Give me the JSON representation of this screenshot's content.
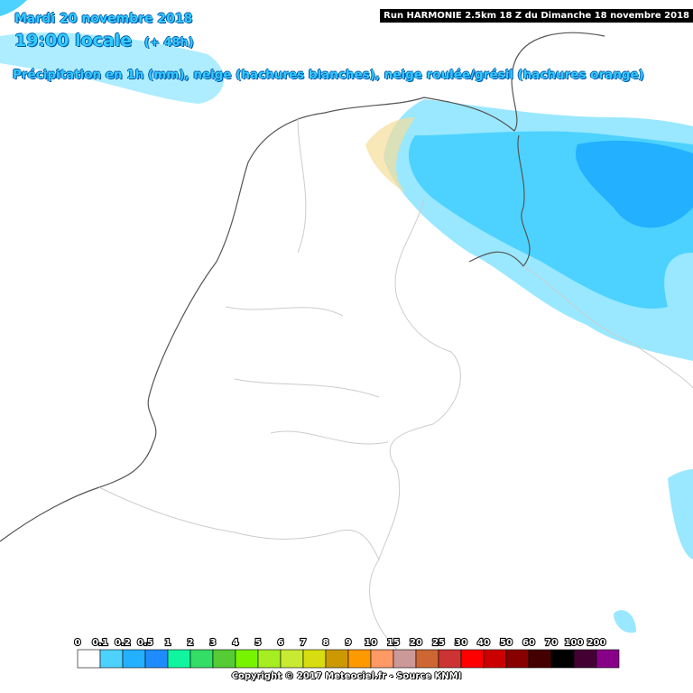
{
  "header": {
    "date": "Mardi 20 novembre 2018",
    "time": "19:00 locale",
    "offset": "(+ 48h)",
    "subtitle": "Précipitation en 1h (mm), neige (hachures blanches), neige roulée/grésil (hachures orange)",
    "run": "Run HARMONIE 2.5km 18 Z du Dimanche 18 novembre 2018"
  },
  "legend": {
    "items": [
      {
        "label": "0",
        "color": "#ffffff"
      },
      {
        "label": "0.1",
        "color": "#99e8ff"
      },
      {
        "label": "0.2",
        "color": "#4dd2ff"
      },
      {
        "label": "0.5",
        "color": "#22b0ff"
      },
      {
        "label": "1",
        "color": "#1e8cff"
      },
      {
        "label": "2",
        "color": "#10f5a0"
      },
      {
        "label": "3",
        "color": "#33dd66"
      },
      {
        "label": "4",
        "color": "#55cc33"
      },
      {
        "label": "5",
        "color": "#77f500"
      },
      {
        "label": "6",
        "color": "#a6ee22"
      },
      {
        "label": "7",
        "color": "#c8ea33"
      },
      {
        "label": "8",
        "color": "#d8dd10"
      },
      {
        "label": "9",
        "color": "#cc9900"
      },
      {
        "label": "10",
        "color": "#ff9900"
      },
      {
        "label": "15",
        "color": "#ff9966"
      },
      {
        "label": "20",
        "color": "#cc9999"
      },
      {
        "label": "25",
        "color": "#cc6633"
      },
      {
        "label": "30",
        "color": "#cc3333"
      },
      {
        "label": "40",
        "color": "#ff0000"
      },
      {
        "label": "50",
        "color": "#cc0000"
      },
      {
        "label": "60",
        "color": "#880000"
      },
      {
        "label": "70",
        "color": "#440000"
      },
      {
        "label": "100",
        "color": "#000000"
      },
      {
        "label": "200",
        "color": "#440033"
      }
    ],
    "last_color": "#880088"
  },
  "footer": {
    "copyright": "Copyright © 2017 Meteociel.fr - Source KNMI"
  }
}
